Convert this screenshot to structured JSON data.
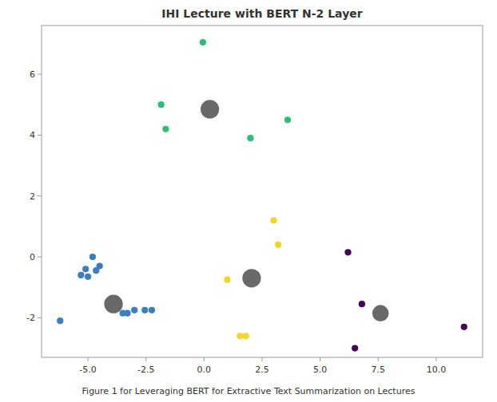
{
  "chart_data": {
    "type": "scatter",
    "title": "IHI Lecture with BERT N-2 Layer",
    "annotations": [
      "Figure 1 for Leveraging BERT for Extractive Text Summarization on Lectures"
    ],
    "x": [
      -6.2,
      -5.3,
      -5.1,
      -5.0,
      -4.8,
      -4.65,
      -4.5,
      -4.15,
      -3.9,
      -3.5,
      -3.3,
      -3.0,
      -2.55,
      -2.25,
      -1.85,
      -1.65,
      -0.05,
      0.25,
      1.0,
      1.55,
      1.8,
      2.05,
      2.0,
      3.0,
      3.2,
      3.6,
      6.2,
      6.8,
      7.6,
      6.5,
      11.2
    ],
    "values": [
      -2.1,
      -0.6,
      -0.4,
      -0.65,
      0.0,
      -0.45,
      -0.3,
      -1.5,
      -1.55,
      -1.85,
      -1.85,
      -1.75,
      -1.75,
      -1.75,
      5.0,
      4.2,
      7.05,
      4.85,
      -0.75,
      -2.6,
      -2.6,
      -0.7,
      3.9,
      1.2,
      0.4,
      4.5,
      0.15,
      -1.55,
      -1.85,
      -3.0,
      -2.3
    ],
    "colors": [
      "#3a7ebf",
      "#3a7ebf",
      "#3a7ebf",
      "#3a7ebf",
      "#3a7ebf",
      "#3a7ebf",
      "#3a7ebf",
      "#3a7ebf",
      "#696969",
      "#3a7ebf",
      "#3a7ebf",
      "#3a7ebf",
      "#3a7ebf",
      "#3a7ebf",
      "#2ebd79",
      "#2ebd79",
      "#2ebd79",
      "#696969",
      "#f5d327",
      "#f5d327",
      "#f5d327",
      "#696969",
      "#2ebd79",
      "#f5d327",
      "#f5d327",
      "#2ebd79",
      "#440154",
      "#440154",
      "#696969",
      "#440154",
      "#440154"
    ],
    "sizes": [
      35,
      35,
      35,
      35,
      35,
      35,
      35,
      35,
      280,
      35,
      35,
      35,
      35,
      35,
      35,
      35,
      35,
      280,
      35,
      35,
      35,
      280,
      35,
      35,
      35,
      35,
      35,
      35,
      220,
      35,
      35
    ],
    "xlim": [
      -7.0,
      12.0
    ],
    "ylim": [
      -3.3,
      7.6
    ],
    "xticks": [
      {
        "value": -5.0,
        "label": "-5.0"
      },
      {
        "value": -2.5,
        "label": "-2.5"
      },
      {
        "value": 0.0,
        "label": "0.0"
      },
      {
        "value": 2.5,
        "label": "2.5"
      },
      {
        "value": 5.0,
        "label": "5.0"
      },
      {
        "value": 7.5,
        "label": "7.5"
      },
      {
        "value": 10.0,
        "label": "10.0"
      }
    ],
    "yticks": [
      -2,
      0,
      2,
      4,
      6
    ]
  }
}
